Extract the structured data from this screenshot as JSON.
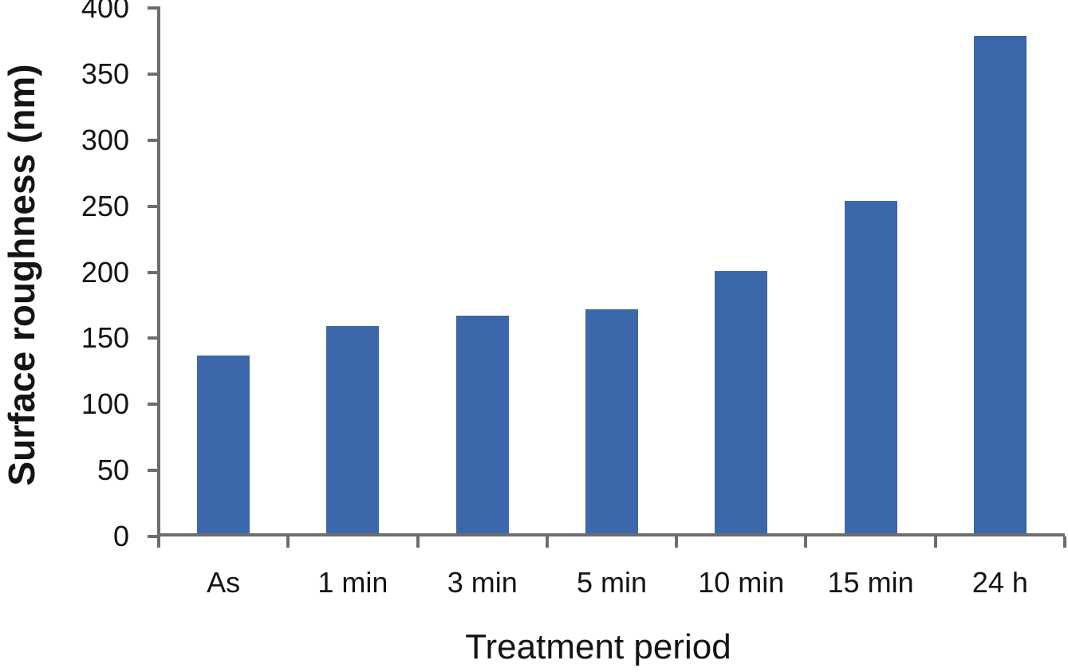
{
  "chart_data": {
    "type": "bar",
    "title": "",
    "categories": [
      "As",
      "1 min",
      "3 min",
      "5 min",
      "10 min",
      "15 min",
      "24 h"
    ],
    "values": [
      137,
      159,
      167,
      172,
      201,
      254,
      379
    ],
    "xlabel": "Treatment period",
    "ylabel": "Surface roughness (nm)",
    "ylim": [
      0,
      400
    ],
    "yticks": [
      0,
      50,
      100,
      150,
      200,
      250,
      300,
      350,
      400
    ],
    "grid": false,
    "legend": "none",
    "bar_color": "#3c68ab",
    "axis_color": "#6d6d6d",
    "text_color": "#141414"
  }
}
